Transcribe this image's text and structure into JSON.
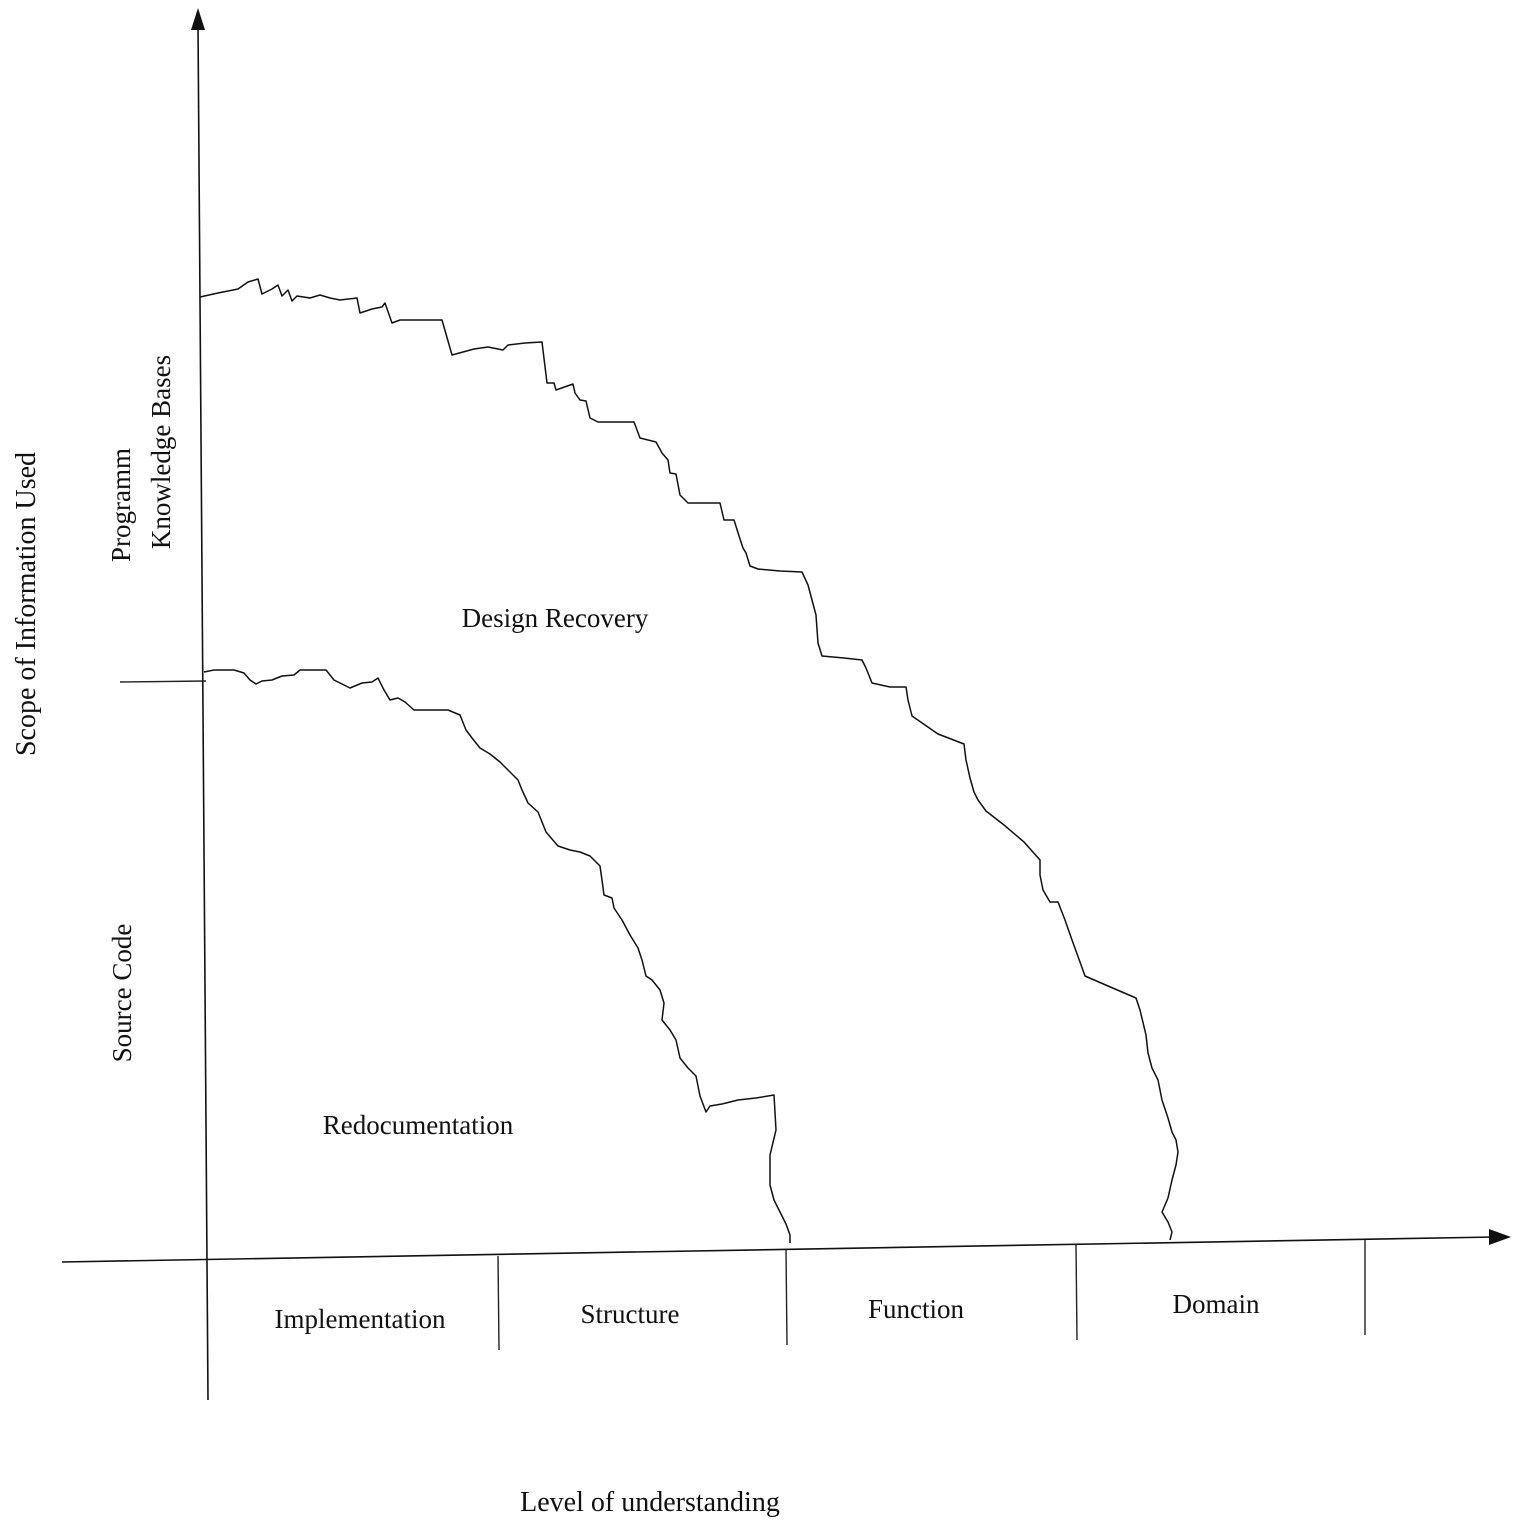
{
  "x_axis": {
    "title": "Level of understanding",
    "levels": [
      "Implementation",
      "Structure",
      "Function",
      "Domain"
    ]
  },
  "y_axis": {
    "title": "Scope of Information Used",
    "bands": {
      "upper_line1": "Programm",
      "upper_line2": "Knowledge Bases",
      "lower": "Source Code"
    }
  },
  "regions": {
    "design_recovery": "Design Recovery",
    "redocumentation": "Redocumentation"
  },
  "colors": {
    "ink": "#111111",
    "background": "#ffffff"
  }
}
